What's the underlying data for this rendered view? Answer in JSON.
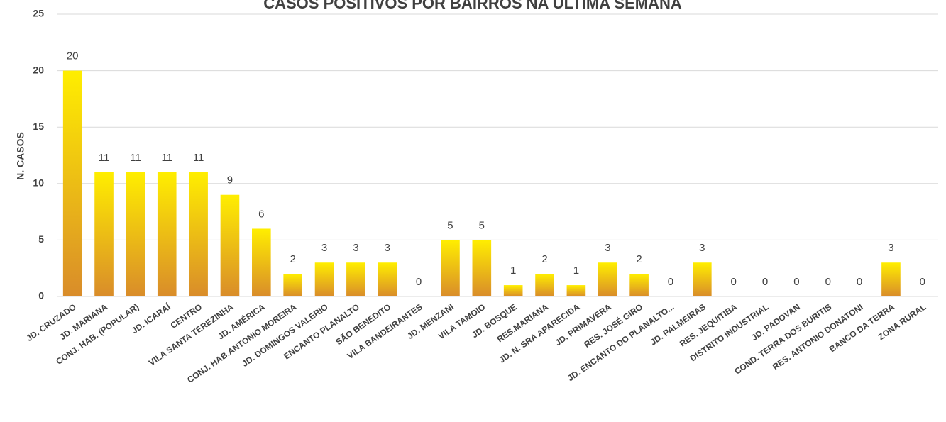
{
  "chart_data": {
    "type": "bar",
    "title": "CASOS POSITIVOS POR BAIRROS NA ÚLTIMA SEMANA",
    "y_label": "N. CASOS",
    "categories": [
      "JD. CRUZADO",
      "JD. MARIANA",
      "CONJ. HAB. (POPULAR)",
      "JD. ICARAÍ",
      "CENTRO",
      "VILA SANTA TEREZINHA",
      "JD. AMÉRICA",
      "CONJ. HAB.ANTONIO MOREIRA",
      "JD. DOMINGOS VALERIO",
      "ENCANTO PLANALTO",
      "SÃO BENEDITO",
      "VILA BANDEIRANTES",
      "JD. MENZANI",
      "VILA TAMOIO",
      "JD. BOSQUE",
      "RES.MARIANA",
      "JD. N. SRA APARECIDA",
      "JD. PRIMAVERA",
      "RES. JOSÉ GIRO",
      "JD. ENCANTO DO PLANALTO...",
      "JD. PALMEIRAS",
      "RES. JEQUITIBA",
      "DISTRITO INDUSTRIAL",
      "JD. PADOVAN",
      "COND. TERRA DOS BURITIS",
      "RES. ANTONIO DONATONI",
      "BANCO DA TERRA",
      "ZONA RURAL"
    ],
    "values": [
      20,
      11,
      11,
      11,
      11,
      9,
      6,
      2,
      3,
      3,
      3,
      0,
      5,
      5,
      1,
      2,
      1,
      3,
      2,
      0,
      3,
      0,
      0,
      0,
      0,
      0,
      3,
      0
    ],
    "color": [
      "#ffee00",
      "#d98c2a"
    ],
    "ylim": [
      0,
      25
    ],
    "yticks": [
      0,
      5,
      10,
      15,
      20,
      25
    ],
    "grid": true
  }
}
